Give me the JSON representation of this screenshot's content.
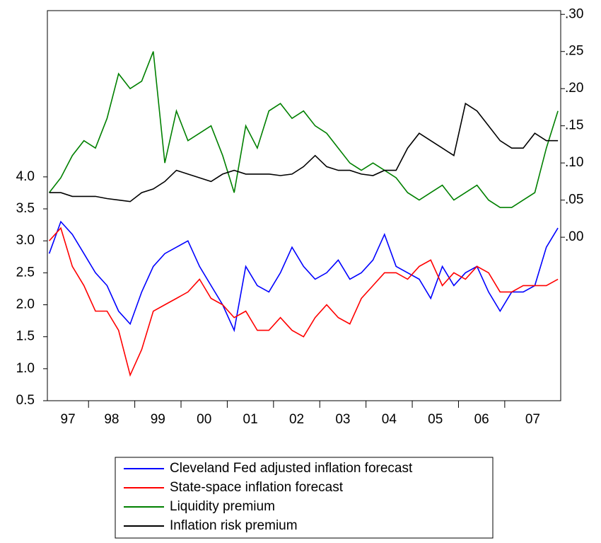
{
  "chart_data": {
    "type": "line",
    "x": [
      1997.15,
      1997.4,
      1997.65,
      1997.9,
      1998.15,
      1998.4,
      1998.65,
      1998.9,
      1999.15,
      1999.4,
      1999.65,
      1999.9,
      2000.15,
      2000.4,
      2000.65,
      2000.9,
      2001.15,
      2001.4,
      2001.65,
      2001.9,
      2002.15,
      2002.4,
      2002.65,
      2002.9,
      2003.15,
      2003.4,
      2003.65,
      2003.9,
      2004.15,
      2004.4,
      2004.65,
      2004.9,
      2005.15,
      2005.4,
      2005.65,
      2005.9,
      2006.15,
      2006.4,
      2006.65,
      2006.9,
      2007.15,
      2007.4,
      2007.65,
      2007.9,
      2008.15
    ],
    "xlim": [
      1997.11,
      2008.21
    ],
    "xticks": [
      {
        "value": 1997,
        "label": "97"
      },
      {
        "value": 1998,
        "label": "98"
      },
      {
        "value": 1999,
        "label": "99"
      },
      {
        "value": 2000,
        "label": "00"
      },
      {
        "value": 2001,
        "label": "01"
      },
      {
        "value": 2002,
        "label": "02"
      },
      {
        "value": 2003,
        "label": "03"
      },
      {
        "value": 2004,
        "label": "04"
      },
      {
        "value": 2005,
        "label": "05"
      },
      {
        "value": 2006,
        "label": "06"
      },
      {
        "value": 2007,
        "label": "07"
      }
    ],
    "ylim": [
      0.5,
      6.6
    ],
    "yticks": [
      0.5,
      {
        "value": 1,
        "label": "1.0"
      },
      1.5,
      {
        "value": 2,
        "label": "2.0"
      },
      2.5,
      {
        "value": 3,
        "label": "3.0"
      },
      3.5,
      {
        "value": 4,
        "label": "4.0"
      }
    ],
    "y2lim": [
      -0.22,
      0.305
    ],
    "y2ticks": [
      {
        "value": 0,
        "label": ".00"
      },
      {
        "value": 0.05,
        "label": ".05"
      },
      {
        "value": 0.1,
        "label": ".10"
      },
      {
        "value": 0.15,
        "label": ".15"
      },
      {
        "value": 0.2,
        "label": ".20"
      },
      {
        "value": 0.25,
        "label": ".25"
      },
      {
        "value": 0.3,
        "label": ".30"
      }
    ],
    "series": [
      {
        "name": "Cleveland Fed adjusted inflation forecast",
        "color": "#0000ff",
        "values": [
          2.8,
          3.3,
          3.1,
          2.8,
          2.5,
          2.3,
          1.9,
          1.7,
          2.2,
          2.6,
          2.8,
          2.9,
          3.0,
          2.6,
          2.3,
          2.0,
          1.6,
          2.6,
          2.3,
          2.2,
          2.5,
          2.9,
          2.6,
          2.4,
          2.5,
          2.7,
          2.4,
          2.5,
          2.7,
          3.1,
          2.6,
          2.5,
          2.4,
          2.1,
          2.6,
          2.3,
          2.5,
          2.6,
          2.2,
          1.9,
          2.2,
          2.2,
          2.3,
          2.9,
          3.2
        ]
      },
      {
        "name": "State-space inflation forecast",
        "color": "#ff0000",
        "values": [
          3.0,
          3.2,
          2.6,
          2.3,
          1.9,
          1.9,
          1.6,
          0.9,
          1.3,
          1.9,
          2.0,
          2.1,
          2.2,
          2.4,
          2.1,
          2.0,
          1.8,
          1.9,
          1.6,
          1.6,
          1.8,
          1.6,
          1.5,
          1.8,
          2.0,
          1.8,
          1.7,
          2.1,
          2.3,
          2.5,
          2.5,
          2.4,
          2.6,
          2.7,
          2.3,
          2.5,
          2.4,
          2.6,
          2.5,
          2.2,
          2.2,
          2.3,
          2.3,
          2.3,
          2.4
        ]
      },
      {
        "name": "Liquidity premium",
        "color": "#008000",
        "axis": "y2",
        "values": [
          0.06,
          0.08,
          0.11,
          0.13,
          0.12,
          0.16,
          0.22,
          0.2,
          0.21,
          0.25,
          0.1,
          0.17,
          0.13,
          0.14,
          0.15,
          0.11,
          0.06,
          0.15,
          0.12,
          0.17,
          0.18,
          0.16,
          0.17,
          0.15,
          0.14,
          0.12,
          0.1,
          0.09,
          0.1,
          0.09,
          0.08,
          0.06,
          0.05,
          0.06,
          0.07,
          0.05,
          0.06,
          0.07,
          0.05,
          0.04,
          0.04,
          0.05,
          0.06,
          0.12,
          0.17
        ]
      },
      {
        "name": "Inflation risk premium",
        "color": "#000000",
        "axis": "y2",
        "values": [
          0.06,
          0.06,
          0.055,
          0.055,
          0.055,
          0.052,
          0.05,
          0.048,
          0.06,
          0.065,
          0.075,
          0.09,
          0.085,
          0.08,
          0.075,
          0.085,
          0.09,
          0.085,
          0.085,
          0.085,
          0.083,
          0.085,
          0.095,
          0.11,
          0.095,
          0.09,
          0.09,
          0.085,
          0.083,
          0.09,
          0.09,
          0.12,
          0.14,
          0.13,
          0.12,
          0.11,
          0.18,
          0.17,
          0.15,
          0.13,
          0.12,
          0.12,
          0.14,
          0.13,
          0.13
        ]
      }
    ]
  }
}
